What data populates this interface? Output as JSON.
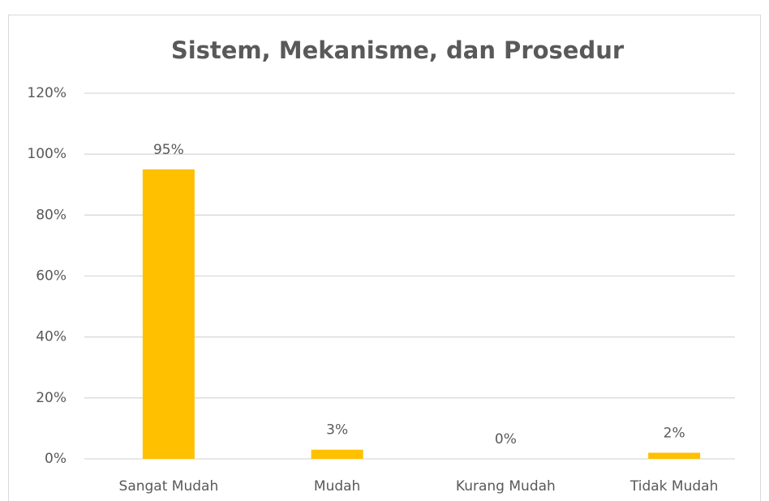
{
  "chart_data": {
    "type": "bar",
    "title": "Sistem, Mekanisme, dan Prosedur",
    "categories": [
      "Sangat Mudah",
      "Mudah",
      "Kurang Mudah",
      "Tidak Mudah"
    ],
    "values": [
      95,
      3,
      0,
      2
    ],
    "value_labels": [
      "95%",
      "3%",
      "0%",
      "2%"
    ],
    "color": "#ffc000",
    "ylim": [
      0,
      120
    ],
    "yticks": [
      {
        "value": 0,
        "label": "0%"
      },
      {
        "value": 20,
        "label": "20%"
      },
      {
        "value": 40,
        "label": "40%"
      },
      {
        "value": 60,
        "label": "60%"
      },
      {
        "value": 80,
        "label": "80%"
      },
      {
        "value": 100,
        "label": "100%"
      },
      {
        "value": 120,
        "label": "120%"
      }
    ],
    "grid": true
  }
}
